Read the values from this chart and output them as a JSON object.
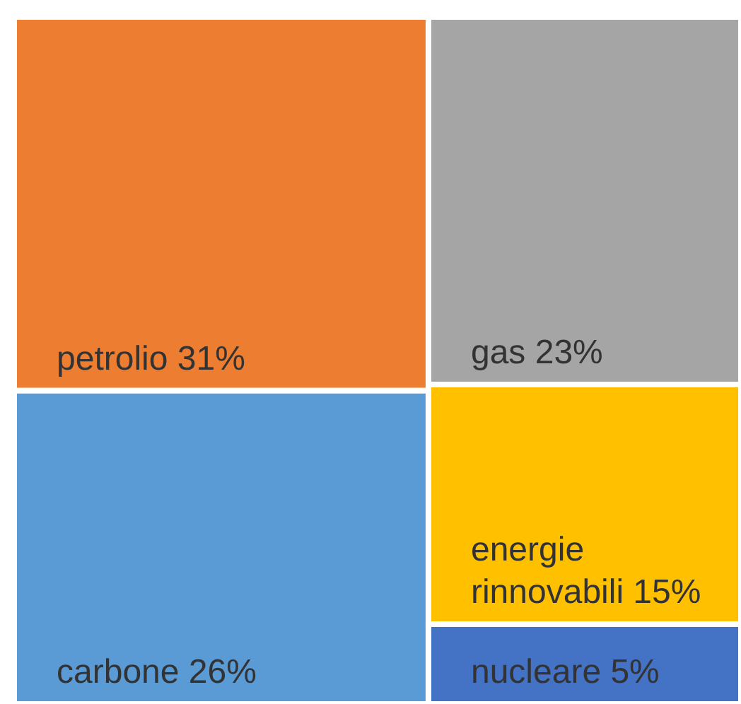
{
  "chart_data": {
    "type": "other",
    "categories": [
      "petrolio",
      "carbone",
      "gas",
      "energie rinnovabili",
      "nucleare"
    ],
    "values": [
      31,
      26,
      23,
      15,
      5
    ],
    "value_labels": [
      "31%",
      "26%",
      "23%",
      "15%",
      "5%"
    ],
    "colors": [
      "#ed7d31",
      "#5b9bd5",
      "#a5a5a5",
      "#ffc000",
      "#4472c4"
    ]
  }
}
